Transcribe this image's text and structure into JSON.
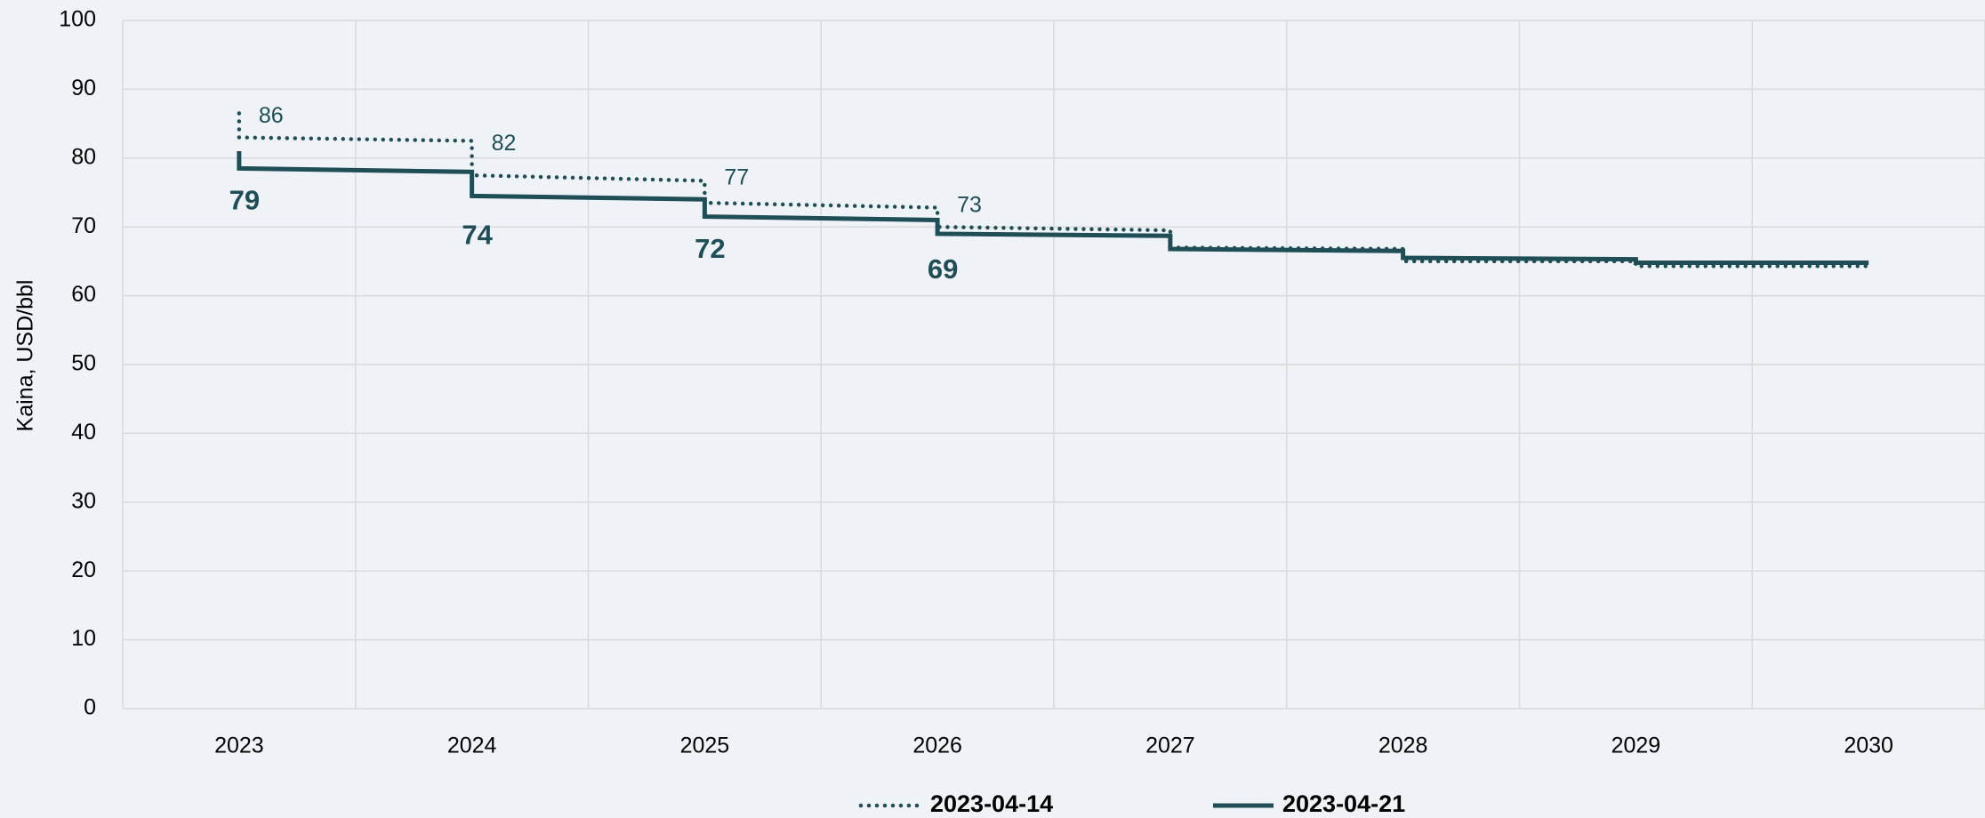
{
  "chart_data": {
    "type": "step-line",
    "y_label": "Kaina, USD/bbl",
    "xlim": [
      2022.5,
      2030.5
    ],
    "xticks": [
      2023,
      2024,
      2025,
      2026,
      2027,
      2028,
      2029,
      2030
    ],
    "ylim": [
      0,
      100
    ],
    "yticks": [
      0,
      10,
      20,
      30,
      40,
      50,
      60,
      70,
      80,
      90,
      100
    ],
    "grid": true,
    "legend": "bottom",
    "series": [
      {
        "name": "2023-04-14",
        "color": "#1f4e56",
        "style": "dotted",
        "x": [
          2023,
          2023,
          2024,
          2024,
          2025,
          2025,
          2026,
          2026,
          2027,
          2027,
          2028,
          2028,
          2029,
          2029,
          2030
        ],
        "values": [
          86.5,
          83,
          82.5,
          77.5,
          76.7,
          73.5,
          72.8,
          70,
          69.5,
          67,
          66.8,
          65,
          65,
          64.3,
          64.3
        ],
        "labels": [
          {
            "x": 2023,
            "value": 86
          },
          {
            "x": 2024,
            "value": 82
          },
          {
            "x": 2025,
            "value": 77
          },
          {
            "x": 2026,
            "value": 73
          }
        ]
      },
      {
        "name": "2023-04-21",
        "color": "#1f4e56",
        "style": "solid",
        "x": [
          2023,
          2023,
          2024,
          2024,
          2025,
          2025,
          2026,
          2026,
          2027,
          2027,
          2028,
          2028,
          2029,
          2029,
          2030
        ],
        "values": [
          81,
          78.5,
          78,
          74.5,
          74,
          71.5,
          71,
          69,
          68.7,
          66.8,
          66.5,
          65.5,
          65.3,
          64.8,
          64.8
        ],
        "labels": [
          {
            "x": 2023,
            "value": 79
          },
          {
            "x": 2024,
            "value": 74
          },
          {
            "x": 2025,
            "value": 72
          },
          {
            "x": 2026,
            "value": 69
          }
        ]
      }
    ]
  }
}
